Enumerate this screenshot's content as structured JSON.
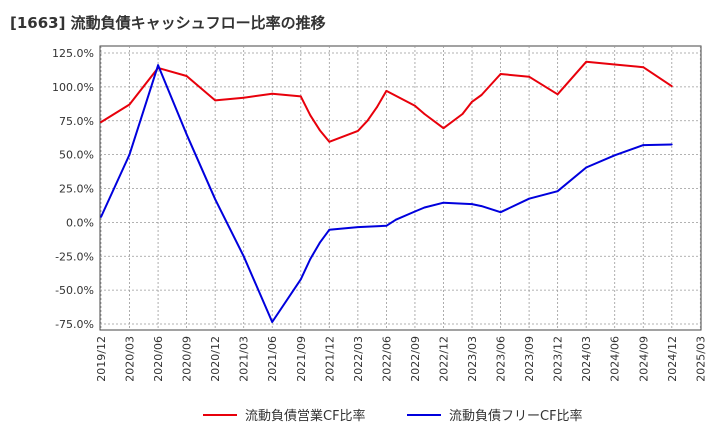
{
  "chart_data": {
    "type": "line",
    "title": "[1663]  流動負債キャッシュフロー比率の推移",
    "xlabel": "",
    "ylabel": "",
    "ylim": [
      -80,
      127
    ],
    "y_ticks": [
      "125.0%",
      "100.0%",
      "75.0%",
      "50.0%",
      "25.0%",
      "0.0%",
      "-25.0%",
      "-50.0%",
      "-75.0%"
    ],
    "y_tick_values": [
      125,
      100,
      75,
      50,
      25,
      0,
      -25,
      -50,
      -75
    ],
    "x_ticks": [
      "2019/12",
      "2020/03",
      "2020/06",
      "2020/09",
      "2020/12",
      "2021/03",
      "2021/06",
      "2021/09",
      "2021/12",
      "2022/03",
      "2022/06",
      "2022/09",
      "2022/12",
      "2023/03",
      "2023/06",
      "2023/09",
      "2023/12",
      "2024/03",
      "2024/06",
      "2024/09",
      "2024/12",
      "2025/03"
    ],
    "grid": true,
    "legend_position": "bottom",
    "series": [
      {
        "name": "流動負債営業CF比率",
        "color": "#e8000b",
        "points": [
          [
            "2019/12",
            74
          ],
          [
            "2020/03",
            87
          ],
          [
            "2020/06",
            114
          ],
          [
            "2020/09",
            108
          ],
          [
            "2020/12",
            90
          ],
          [
            "2021/03",
            92
          ],
          [
            "2021/06",
            95
          ],
          [
            "2021/09",
            93
          ],
          [
            "2021/10",
            79
          ],
          [
            "2021/11",
            68
          ],
          [
            "2021/12",
            59.5
          ],
          [
            "2022/03",
            67.5
          ],
          [
            "2022/04",
            75
          ],
          [
            "2022/05",
            85
          ],
          [
            "2022/06",
            97
          ],
          [
            "2022/09",
            86
          ],
          [
            "2022/10",
            80
          ],
          [
            "2022/12",
            69.5
          ],
          [
            "2023/02",
            80
          ],
          [
            "2023/03",
            89
          ],
          [
            "2023/04",
            94
          ],
          [
            "2023/06",
            109.5
          ],
          [
            "2023/09",
            107.5
          ],
          [
            "2023/12",
            94.5
          ],
          [
            "2024/03",
            118.5
          ],
          [
            "2024/06",
            116.5
          ],
          [
            "2024/09",
            114.5
          ],
          [
            "2024/12",
            100.5
          ]
        ]
      },
      {
        "name": "流動負債フリーCF比率",
        "color": "#0000dd",
        "points": [
          [
            "2019/12",
            4
          ],
          [
            "2020/03",
            50
          ],
          [
            "2020/06",
            116
          ],
          [
            "2020/09",
            65
          ],
          [
            "2020/12",
            17
          ],
          [
            "2021/03",
            -25
          ],
          [
            "2021/06",
            -73.5
          ],
          [
            "2021/09",
            -42
          ],
          [
            "2021/10",
            -27
          ],
          [
            "2021/11",
            -15
          ],
          [
            "2021/12",
            -5.5
          ],
          [
            "2022/03",
            -3.5
          ],
          [
            "2022/06",
            -2.5
          ],
          [
            "2022/07",
            2
          ],
          [
            "2022/09",
            8
          ],
          [
            "2022/10",
            11
          ],
          [
            "2022/12",
            14.5
          ],
          [
            "2023/03",
            13.5
          ],
          [
            "2023/04",
            12
          ],
          [
            "2023/06",
            7.5
          ],
          [
            "2023/09",
            17.5
          ],
          [
            "2023/12",
            23
          ],
          [
            "2024/03",
            40.5
          ],
          [
            "2024/06",
            49.5
          ],
          [
            "2024/09",
            57
          ],
          [
            "2024/12",
            57.5
          ]
        ]
      }
    ]
  }
}
